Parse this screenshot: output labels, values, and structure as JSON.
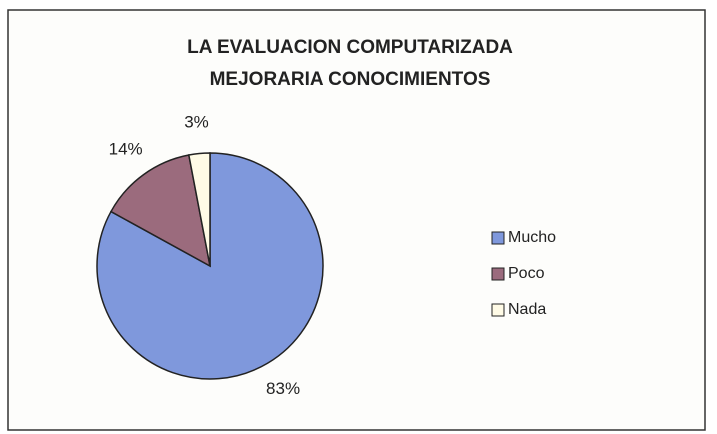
{
  "chart_data": {
    "type": "pie",
    "title": [
      "LA EVALUACION COMPUTARIZADA",
      "MEJORARIA CONOCIMIENTOS"
    ],
    "categories": [
      "Mucho",
      "Poco",
      "Nada"
    ],
    "values": [
      83,
      14,
      3
    ],
    "value_labels": [
      "83%",
      "14%",
      "3%"
    ],
    "colors": [
      "#7f98dc",
      "#9b6b7d",
      "#fffbe6"
    ],
    "legend": "right"
  }
}
